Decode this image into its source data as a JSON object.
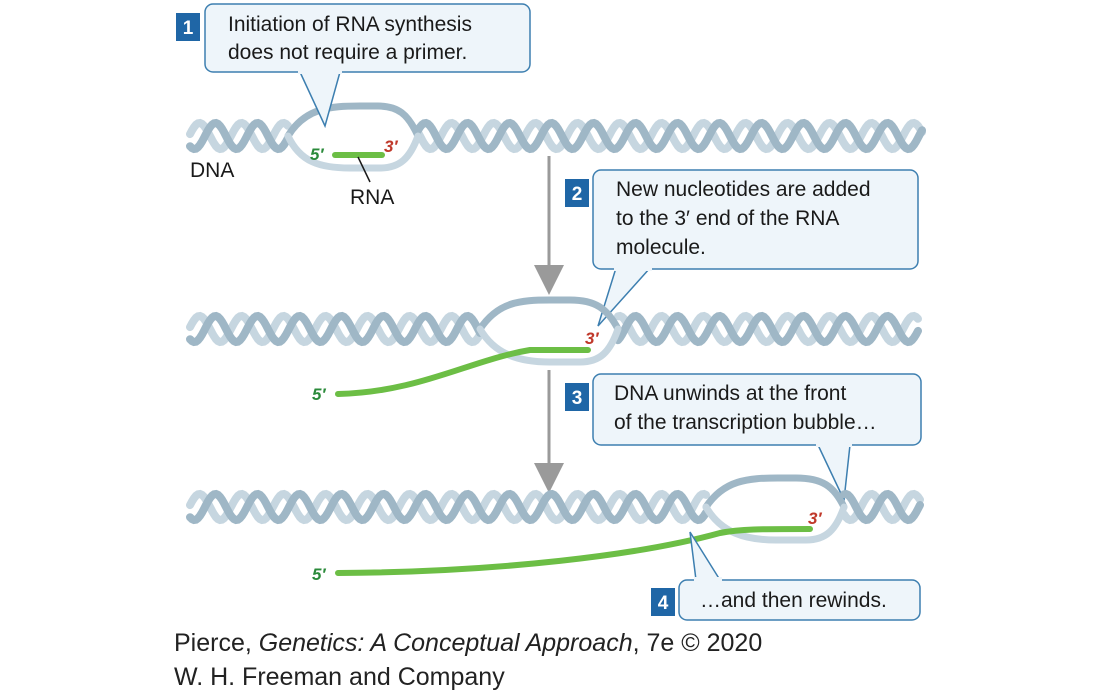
{
  "colors": {
    "strand_light": "#c6d6e0",
    "strand_mid": "#9fb7c6",
    "strand_dark": "#7e98aa",
    "rna": "#6cbe45",
    "five_prime": "#2a8a3a",
    "three_prime": "#c0392b",
    "callout_fill": "#eef5fa",
    "callout_border": "#3d7fb0",
    "step_badge": "#1f66a6",
    "arrow": "#9a9a9a"
  },
  "steps": [
    {
      "number": "1",
      "lines": [
        "Initiation of RNA synthesis",
        "does not require a primer."
      ]
    },
    {
      "number": "2",
      "lines": [
        "New nucleotides are added",
        "to the 3′ end of the RNA",
        "molecule."
      ]
    },
    {
      "number": "3",
      "lines": [
        "DNA unwinds at the front",
        "of the transcription bubble…"
      ]
    },
    {
      "number": "4",
      "lines": [
        "…and then rewinds."
      ]
    }
  ],
  "labels": {
    "dna": "DNA",
    "rna": "RNA",
    "five_prime": "5′",
    "three_prime": "3′"
  },
  "credit": {
    "author": "Pierce, ",
    "title": "Genetics: A Conceptual Approach",
    "edition": ", 7e © 2020",
    "publisher": "W. H. Freeman and Company"
  }
}
